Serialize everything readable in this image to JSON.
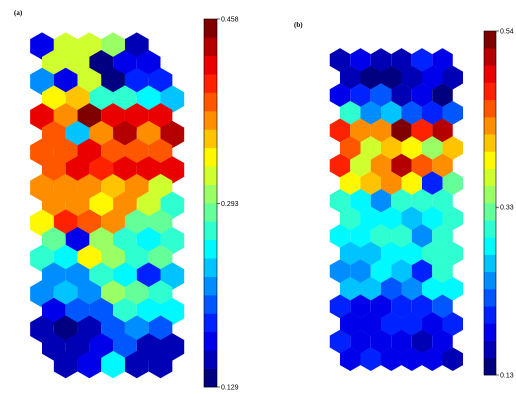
{
  "chart_data": [
    {
      "type": "heatmap",
      "subtype": "hexagonal self-organizing map (U-matrix)",
      "panel_label": "(a)",
      "title": "",
      "xlabel": "",
      "ylabel": "",
      "grid_cols": 6,
      "grid_rows": 19,
      "colormap": "jet",
      "colorbar": {
        "min": 0.129,
        "max": 0.458,
        "ticks": [
          0.129,
          0.293,
          0.458
        ],
        "tick_labels": [
          "0.129",
          "0.293",
          "0.458"
        ],
        "levels": 20
      },
      "cells": [
        [
          0.175,
          0.31,
          0.31,
          0.295,
          0.16,
          null
        ],
        [
          0.31,
          0.31,
          0.14,
          0.165,
          0.165,
          null
        ],
        [
          0.215,
          0.175,
          0.31,
          0.14,
          0.18,
          0.19
        ],
        [
          0.34,
          0.35,
          0.27,
          0.275,
          0.25,
          0.24
        ],
        [
          0.42,
          0.37,
          0.455,
          0.42,
          0.42,
          0.41
        ],
        [
          0.385,
          0.24,
          0.37,
          0.43,
          0.36,
          0.43
        ],
        [
          0.39,
          0.38,
          0.41,
          0.38,
          0.385,
          0.39
        ],
        [
          0.39,
          0.415,
          0.4,
          0.425,
          0.41,
          0.41
        ],
        [
          0.37,
          0.37,
          0.365,
          0.345,
          0.37,
          0.31
        ],
        [
          0.37,
          0.36,
          0.34,
          0.365,
          0.32,
          0.27
        ],
        [
          0.33,
          0.4,
          0.38,
          0.36,
          0.29,
          0.29
        ],
        [
          0.28,
          0.17,
          0.3,
          0.27,
          0.26,
          0.27
        ],
        [
          0.265,
          0.25,
          0.33,
          0.295,
          0.27,
          0.28
        ],
        [
          0.215,
          0.22,
          0.27,
          0.26,
          0.18,
          0.24
        ],
        [
          0.215,
          0.23,
          0.225,
          0.305,
          0.29,
          0.27
        ],
        [
          0.17,
          0.2,
          0.2,
          0.27,
          0.25,
          0.26
        ],
        [
          0.15,
          0.135,
          0.16,
          0.2,
          0.22,
          0.2
        ],
        [
          0.16,
          0.15,
          0.165,
          0.2,
          0.16,
          0.16
        ],
        [
          null,
          0.16,
          0.17,
          0.25,
          0.15,
          0.15
        ]
      ]
    },
    {
      "type": "heatmap",
      "subtype": "hexagonal self-organizing map (U-matrix)",
      "panel_label": "(b)",
      "title": "",
      "xlabel": "",
      "ylabel": "",
      "grid_cols": 6,
      "grid_rows": 18,
      "colormap": "jet",
      "colorbar": {
        "min": 0.13,
        "max": 0.54,
        "ticks": [
          0.13,
          0.33,
          0.54
        ],
        "tick_labels": [
          "0.13",
          "0.33",
          "0.54"
        ],
        "levels": 20
      },
      "cells": [
        [
          0.16,
          0.18,
          0.17,
          0.16,
          0.21,
          0.19
        ],
        [
          0.17,
          0.15,
          0.14,
          0.16,
          0.19,
          0.16
        ],
        [
          0.19,
          0.2,
          0.23,
          0.16,
          0.19,
          0.14
        ],
        [
          0.3,
          0.25,
          0.26,
          0.23,
          0.2,
          0.23
        ],
        [
          0.47,
          0.42,
          0.43,
          0.53,
          0.46,
          0.51
        ],
        [
          0.44,
          0.37,
          0.41,
          0.39,
          0.35,
          0.41
        ],
        [
          0.47,
          0.36,
          0.42,
          0.51,
          0.45,
          0.43
        ],
        [
          0.38,
          0.4,
          0.43,
          0.38,
          0.2,
          0.32
        ],
        [
          0.3,
          0.29,
          0.25,
          0.3,
          0.3,
          0.3
        ],
        [
          0.3,
          0.29,
          0.29,
          0.26,
          0.29,
          0.3
        ],
        [
          0.28,
          0.28,
          0.3,
          0.3,
          0.25,
          0.3
        ],
        [
          0.27,
          0.26,
          0.29,
          0.29,
          0.3,
          0.3
        ],
        [
          0.25,
          0.24,
          0.29,
          0.27,
          0.2,
          0.3
        ],
        [
          0.27,
          0.26,
          0.23,
          0.25,
          0.28,
          0.29
        ],
        [
          0.21,
          0.19,
          0.19,
          0.21,
          0.2,
          0.23
        ],
        [
          0.19,
          0.18,
          0.2,
          0.21,
          0.19,
          0.2
        ],
        [
          0.2,
          0.19,
          0.18,
          0.19,
          0.17,
          0.18
        ],
        [
          0.19,
          0.2,
          0.19,
          0.18,
          0.18,
          0.17
        ]
      ]
    }
  ]
}
